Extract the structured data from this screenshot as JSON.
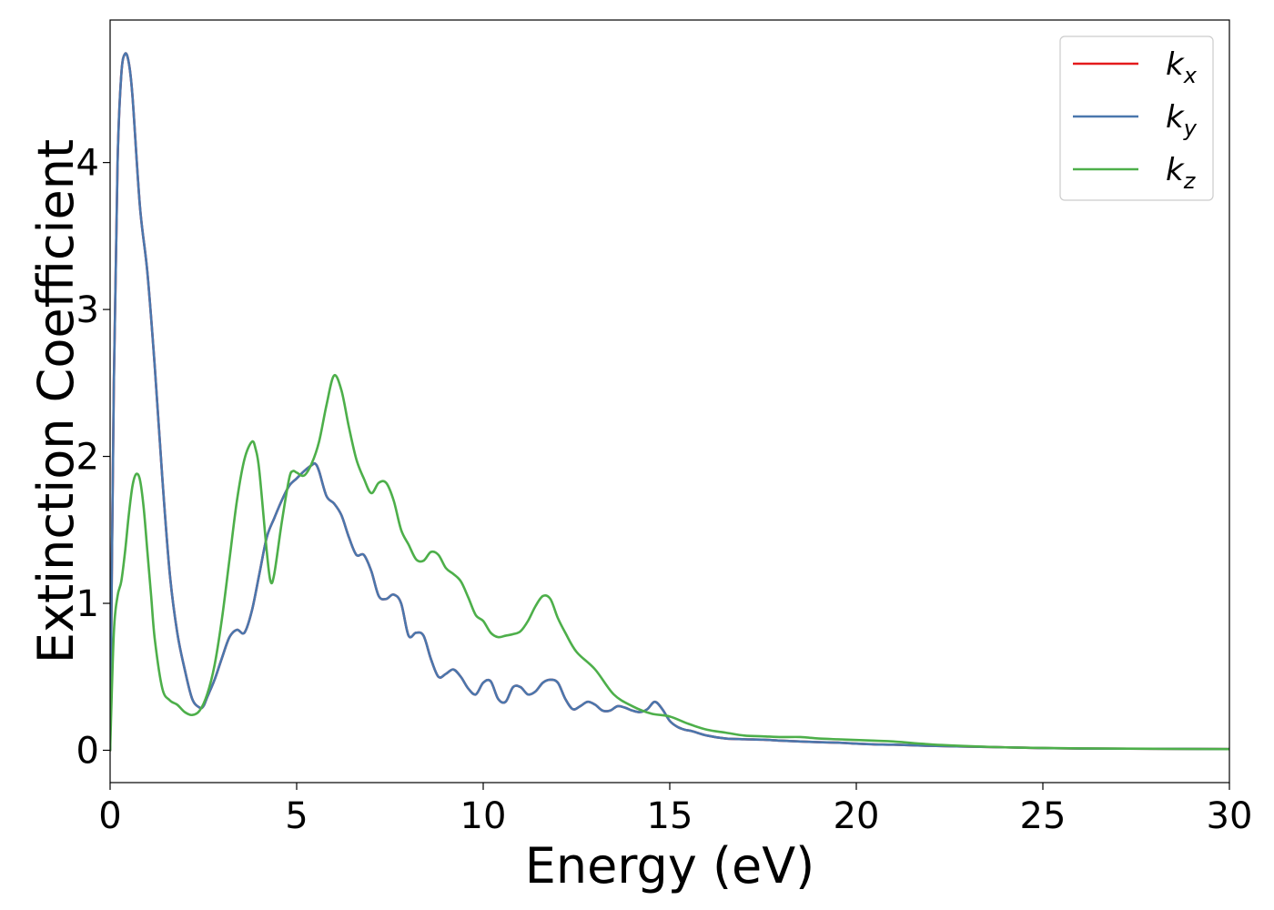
{
  "chart_data": {
    "type": "line",
    "title": "",
    "xlabel": "Energy (eV)",
    "ylabel": "Extinction Coefficient",
    "xlim": [
      0,
      30
    ],
    "ylim": [
      -0.22,
      4.97
    ],
    "xticks": [
      0,
      5,
      10,
      15,
      20,
      25,
      30
    ],
    "yticks": [
      0,
      1,
      2,
      3,
      4
    ],
    "grid": false,
    "legend_position": "top-right",
    "series": [
      {
        "name": "k",
        "subscript": "x",
        "color": "#e41a1c",
        "x": [
          0,
          0.1,
          0.2,
          0.3,
          0.4,
          0.5,
          0.6,
          0.8,
          1.0,
          1.2,
          1.4,
          1.6,
          1.8,
          2.0,
          2.2,
          2.4,
          2.5,
          2.6,
          2.8,
          3.0,
          3.2,
          3.4,
          3.6,
          3.8,
          4.0,
          4.2,
          4.4,
          4.6,
          4.8,
          5.0,
          5.2,
          5.4,
          5.5,
          5.6,
          5.8,
          6.0,
          6.2,
          6.4,
          6.6,
          6.8,
          7.0,
          7.2,
          7.4,
          7.6,
          7.8,
          8.0,
          8.2,
          8.4,
          8.6,
          8.8,
          9.0,
          9.2,
          9.4,
          9.6,
          9.8,
          10.0,
          10.2,
          10.4,
          10.6,
          10.8,
          11.0,
          11.2,
          11.4,
          11.6,
          11.8,
          12.0,
          12.2,
          12.4,
          12.6,
          12.8,
          13.0,
          13.2,
          13.4,
          13.6,
          13.8,
          14.0,
          14.2,
          14.4,
          14.6,
          14.8,
          15.0,
          15.2,
          15.4,
          15.6,
          16.0,
          16.5,
          17.0,
          17.5,
          18.0,
          18.5,
          19.0,
          19.5,
          20.0,
          20.5,
          21.0,
          22.0,
          23.0,
          24.0,
          25.0,
          26.0,
          28.0,
          30.0
        ],
        "y": [
          0,
          2.5,
          4.0,
          4.6,
          4.74,
          4.68,
          4.45,
          3.7,
          3.25,
          2.6,
          1.85,
          1.2,
          0.8,
          0.55,
          0.35,
          0.29,
          0.3,
          0.36,
          0.48,
          0.63,
          0.77,
          0.82,
          0.8,
          0.95,
          1.2,
          1.45,
          1.58,
          1.7,
          1.8,
          1.85,
          1.9,
          1.94,
          1.95,
          1.9,
          1.73,
          1.68,
          1.6,
          1.45,
          1.33,
          1.33,
          1.22,
          1.05,
          1.03,
          1.06,
          1.0,
          0.78,
          0.8,
          0.78,
          0.62,
          0.5,
          0.52,
          0.55,
          0.5,
          0.42,
          0.38,
          0.46,
          0.47,
          0.35,
          0.33,
          0.43,
          0.43,
          0.38,
          0.4,
          0.46,
          0.48,
          0.46,
          0.35,
          0.28,
          0.3,
          0.33,
          0.31,
          0.27,
          0.27,
          0.3,
          0.29,
          0.27,
          0.26,
          0.28,
          0.33,
          0.28,
          0.2,
          0.16,
          0.14,
          0.13,
          0.1,
          0.08,
          0.075,
          0.072,
          0.065,
          0.06,
          0.055,
          0.052,
          0.045,
          0.04,
          0.038,
          0.03,
          0.025,
          0.02,
          0.015,
          0.012,
          0.01,
          0.008
        ]
      },
      {
        "name": "k",
        "subscript": "y",
        "color": "#4a77ad",
        "x": [
          0,
          0.1,
          0.2,
          0.3,
          0.4,
          0.5,
          0.6,
          0.8,
          1.0,
          1.2,
          1.4,
          1.6,
          1.8,
          2.0,
          2.2,
          2.4,
          2.5,
          2.6,
          2.8,
          3.0,
          3.2,
          3.4,
          3.6,
          3.8,
          4.0,
          4.2,
          4.4,
          4.6,
          4.8,
          5.0,
          5.2,
          5.4,
          5.5,
          5.6,
          5.8,
          6.0,
          6.2,
          6.4,
          6.6,
          6.8,
          7.0,
          7.2,
          7.4,
          7.6,
          7.8,
          8.0,
          8.2,
          8.4,
          8.6,
          8.8,
          9.0,
          9.2,
          9.4,
          9.6,
          9.8,
          10.0,
          10.2,
          10.4,
          10.6,
          10.8,
          11.0,
          11.2,
          11.4,
          11.6,
          11.8,
          12.0,
          12.2,
          12.4,
          12.6,
          12.8,
          13.0,
          13.2,
          13.4,
          13.6,
          13.8,
          14.0,
          14.2,
          14.4,
          14.6,
          14.8,
          15.0,
          15.2,
          15.4,
          15.6,
          16.0,
          16.5,
          17.0,
          17.5,
          18.0,
          18.5,
          19.0,
          19.5,
          20.0,
          20.5,
          21.0,
          22.0,
          23.0,
          24.0,
          25.0,
          26.0,
          28.0,
          30.0
        ],
        "y": [
          0,
          2.5,
          4.0,
          4.6,
          4.74,
          4.68,
          4.45,
          3.7,
          3.25,
          2.6,
          1.85,
          1.2,
          0.8,
          0.55,
          0.35,
          0.29,
          0.3,
          0.36,
          0.48,
          0.63,
          0.77,
          0.82,
          0.8,
          0.95,
          1.2,
          1.45,
          1.58,
          1.7,
          1.8,
          1.85,
          1.9,
          1.94,
          1.95,
          1.9,
          1.73,
          1.68,
          1.6,
          1.45,
          1.33,
          1.33,
          1.22,
          1.05,
          1.03,
          1.06,
          1.0,
          0.78,
          0.8,
          0.78,
          0.62,
          0.5,
          0.52,
          0.55,
          0.5,
          0.42,
          0.38,
          0.46,
          0.47,
          0.35,
          0.33,
          0.43,
          0.43,
          0.38,
          0.4,
          0.46,
          0.48,
          0.46,
          0.35,
          0.28,
          0.3,
          0.33,
          0.31,
          0.27,
          0.27,
          0.3,
          0.29,
          0.27,
          0.26,
          0.28,
          0.33,
          0.28,
          0.2,
          0.16,
          0.14,
          0.13,
          0.1,
          0.08,
          0.075,
          0.072,
          0.065,
          0.06,
          0.055,
          0.052,
          0.045,
          0.04,
          0.038,
          0.03,
          0.025,
          0.02,
          0.015,
          0.012,
          0.01,
          0.008
        ]
      },
      {
        "name": "k",
        "subscript": "z",
        "color": "#4daf4a",
        "x": [
          0,
          0.1,
          0.2,
          0.3,
          0.4,
          0.5,
          0.6,
          0.7,
          0.8,
          0.9,
          1.0,
          1.1,
          1.2,
          1.4,
          1.6,
          1.8,
          2.0,
          2.2,
          2.4,
          2.6,
          2.8,
          3.0,
          3.2,
          3.4,
          3.6,
          3.8,
          3.9,
          4.0,
          4.2,
          4.3,
          4.4,
          4.6,
          4.8,
          4.9,
          5.0,
          5.2,
          5.4,
          5.6,
          5.8,
          6.0,
          6.2,
          6.4,
          6.6,
          6.8,
          7.0,
          7.2,
          7.4,
          7.6,
          7.8,
          8.0,
          8.2,
          8.4,
          8.6,
          8.8,
          9.0,
          9.2,
          9.4,
          9.6,
          9.8,
          10.0,
          10.2,
          10.4,
          10.6,
          10.8,
          11.0,
          11.2,
          11.4,
          11.6,
          11.8,
          12.0,
          12.2,
          12.5,
          13.0,
          13.5,
          14.0,
          14.5,
          15.0,
          15.5,
          16.0,
          16.5,
          17.0,
          17.5,
          18.0,
          18.5,
          19.0,
          19.5,
          20.0,
          20.5,
          21.0,
          22.0,
          23.0,
          24.0,
          25.0,
          26.0,
          28.0,
          30.0
        ],
        "y": [
          0,
          0.8,
          1.05,
          1.15,
          1.35,
          1.6,
          1.8,
          1.88,
          1.84,
          1.65,
          1.35,
          1.05,
          0.75,
          0.42,
          0.34,
          0.31,
          0.26,
          0.24,
          0.27,
          0.38,
          0.58,
          0.9,
          1.3,
          1.7,
          1.98,
          2.1,
          2.05,
          1.9,
          1.35,
          1.15,
          1.2,
          1.55,
          1.85,
          1.9,
          1.89,
          1.87,
          1.95,
          2.1,
          2.35,
          2.55,
          2.45,
          2.2,
          1.98,
          1.85,
          1.75,
          1.82,
          1.82,
          1.7,
          1.5,
          1.4,
          1.3,
          1.29,
          1.35,
          1.33,
          1.24,
          1.2,
          1.15,
          1.04,
          0.92,
          0.88,
          0.8,
          0.77,
          0.78,
          0.79,
          0.81,
          0.88,
          0.98,
          1.05,
          1.03,
          0.9,
          0.8,
          0.67,
          0.55,
          0.38,
          0.3,
          0.25,
          0.23,
          0.18,
          0.14,
          0.12,
          0.1,
          0.095,
          0.09,
          0.09,
          0.08,
          0.075,
          0.07,
          0.065,
          0.06,
          0.04,
          0.028,
          0.02,
          0.016,
          0.013,
          0.01,
          0.008
        ]
      }
    ]
  }
}
